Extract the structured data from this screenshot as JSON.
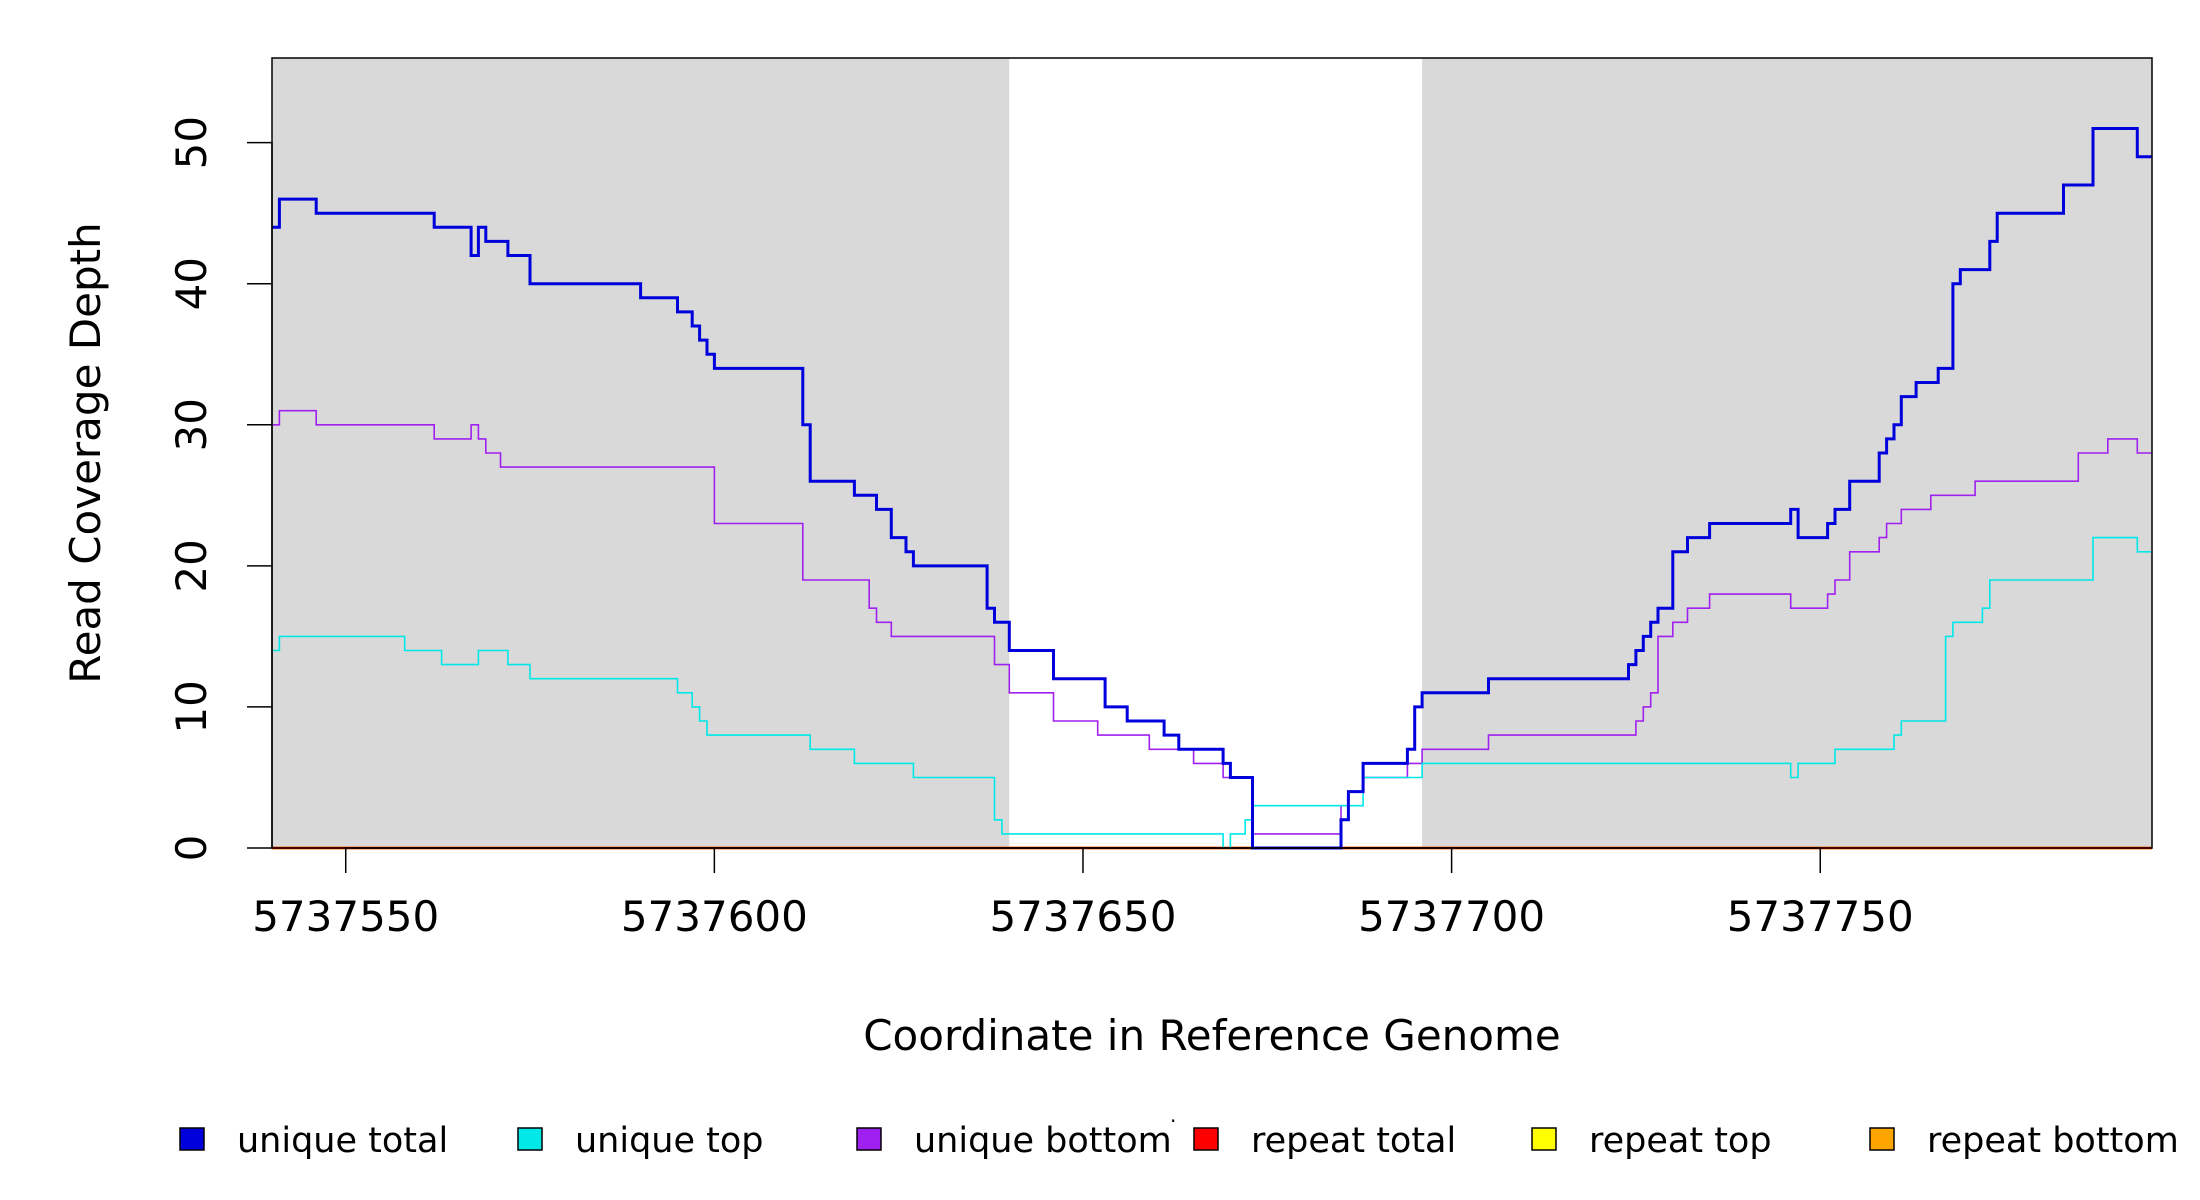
{
  "chart_data": {
    "type": "line",
    "title": "",
    "xlabel": "Coordinate in Reference Genome",
    "ylabel": "Read Coverage Depth",
    "xlim": [
      5737540,
      5737795
    ],
    "ylim": [
      0,
      56
    ],
    "x_ticks": [
      5737550,
      5737600,
      5737650,
      5737700,
      5737750
    ],
    "x_tick_labels": [
      "5737550",
      "5737600",
      "5737650",
      "5737700",
      "5737750"
    ],
    "y_ticks": [
      0,
      10,
      20,
      30,
      40,
      50
    ],
    "y_tick_labels": [
      "0",
      "10",
      "20",
      "30",
      "40",
      "50"
    ],
    "shaded_regions": [
      {
        "x0": 5737540,
        "x1": 5737640,
        "color": "#d9d9d9"
      },
      {
        "x0": 5737696,
        "x1": 5737795,
        "color": "#d9d9d9"
      }
    ],
    "legend_position": "bottom",
    "legend_separator": "·",
    "series": [
      {
        "name": "unique total",
        "color": "#0000dd",
        "x": [
          5737540,
          5737541,
          5737546,
          5737562,
          5737567,
          5737568,
          5737569,
          5737572,
          5737575,
          5737590,
          5737595,
          5737597,
          5737598,
          5737599,
          5737600,
          5737612,
          5737613,
          5737619,
          5737622,
          5737624,
          5737626,
          5737627,
          5737637,
          5737638,
          5737640,
          5737646,
          5737653,
          5737656,
          5737661,
          5737663,
          5737669,
          5737670,
          5737673,
          5737685,
          5737686,
          5737688,
          5737694,
          5737695,
          5737696,
          5737705,
          5737724,
          5737725,
          5737726,
          5737727,
          5737728,
          5737730,
          5737732,
          5737735,
          5737746,
          5737747,
          5737751,
          5737752,
          5737754,
          5737758,
          5737759,
          5737760,
          5737761,
          5737763,
          5737766,
          5737768,
          5737769,
          5737773,
          5737774,
          5737783,
          5737787,
          5737793,
          5737795
        ],
        "y": [
          44,
          46,
          45,
          44,
          42,
          44,
          43,
          42,
          40,
          39,
          38,
          37,
          36,
          35,
          34,
          30,
          26,
          25,
          24,
          22,
          21,
          20,
          17,
          16,
          14,
          12,
          10,
          9,
          8,
          7,
          6,
          5,
          0,
          2,
          4,
          6,
          7,
          10,
          11,
          12,
          13,
          14,
          15,
          16,
          17,
          21,
          22,
          23,
          24,
          22,
          23,
          24,
          26,
          28,
          29,
          30,
          32,
          33,
          34,
          40,
          41,
          43,
          45,
          47,
          51,
          49,
          49
        ]
      },
      {
        "name": "unique top",
        "color": "#00e8e8",
        "x": [
          5737540,
          5737541,
          5737558,
          5737563,
          5737568,
          5737572,
          5737575,
          5737590,
          5737595,
          5737597,
          5737598,
          5737599,
          5737613,
          5737619,
          5737627,
          5737638,
          5737639,
          5737669,
          5737670,
          5737672,
          5737673,
          5737682,
          5737685,
          5737688,
          5737696,
          5737708,
          5737730,
          5737745,
          5737746,
          5737747,
          5737752,
          5737760,
          5737761,
          5737767,
          5737768,
          5737769,
          5737772,
          5737773,
          5737782,
          5737787,
          5737793,
          5737795
        ],
        "y": [
          14,
          15,
          14,
          13,
          14,
          13,
          12,
          12,
          11,
          10,
          9,
          8,
          7,
          6,
          5,
          2,
          1,
          0,
          1,
          2,
          3,
          3,
          3,
          5,
          6,
          6,
          6,
          6,
          5,
          6,
          7,
          8,
          9,
          15,
          16,
          16,
          17,
          19,
          19,
          22,
          21,
          21
        ]
      },
      {
        "name": "unique bottom",
        "color": "#a020f0",
        "x": [
          5737540,
          5737541,
          5737546,
          5737562,
          5737567,
          5737568,
          5737569,
          5737571,
          5737572,
          5737600,
          5737612,
          5737619,
          5737621,
          5737622,
          5737624,
          5737627,
          5737637,
          5737638,
          5737640,
          5737646,
          5737652,
          5737659,
          5737665,
          5737669,
          5737673,
          5737685,
          5737686,
          5737688,
          5737694,
          5737695,
          5737696,
          5737705,
          5737724,
          5737725,
          5737726,
          5737727,
          5737728,
          5737730,
          5737732,
          5737735,
          5737746,
          5737751,
          5737752,
          5737754,
          5737758,
          5737759,
          5737760,
          5737761,
          5737763,
          5737765,
          5737771,
          5737775,
          5737785,
          5737789,
          5737793,
          5737795
        ],
        "y": [
          30,
          31,
          30,
          29,
          30,
          29,
          28,
          27,
          27,
          23,
          19,
          19,
          17,
          16,
          15,
          15,
          15,
          13,
          11,
          9,
          8,
          7,
          6,
          5,
          1,
          3,
          4,
          5,
          6,
          6,
          7,
          8,
          8,
          9,
          10,
          11,
          15,
          16,
          17,
          18,
          17,
          18,
          19,
          21,
          22,
          23,
          23,
          24,
          24,
          25,
          26,
          26,
          28,
          29,
          28,
          28
        ]
      },
      {
        "name": "repeat total",
        "color": "#ff0000",
        "x": [
          5737540,
          5737795
        ],
        "y": [
          0,
          0
        ]
      },
      {
        "name": "repeat top",
        "color": "#ffff00",
        "x": [
          5737540,
          5737795
        ],
        "y": [
          0,
          0
        ]
      },
      {
        "name": "repeat bottom",
        "color": "#ffa500",
        "x": [
          5737540,
          5737795
        ],
        "y": [
          0,
          0
        ]
      }
    ]
  }
}
